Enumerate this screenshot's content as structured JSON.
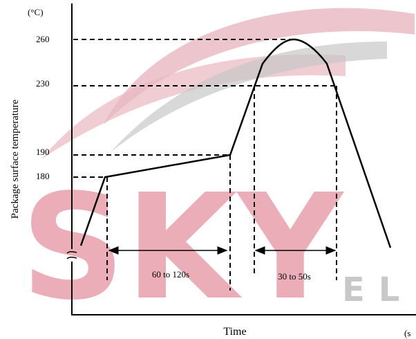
{
  "diagram": {
    "y_unit": "(°C)",
    "y_axis_label": "Package surface temperature",
    "x_axis_label": "Time",
    "x_unit": "(s",
    "temperature_labels": [
      "260",
      "230",
      "190",
      "180"
    ],
    "intervals": [
      "60 to 120s",
      "30 to 50s"
    ],
    "watermark": [
      "SKY",
      "EL"
    ]
  }
}
